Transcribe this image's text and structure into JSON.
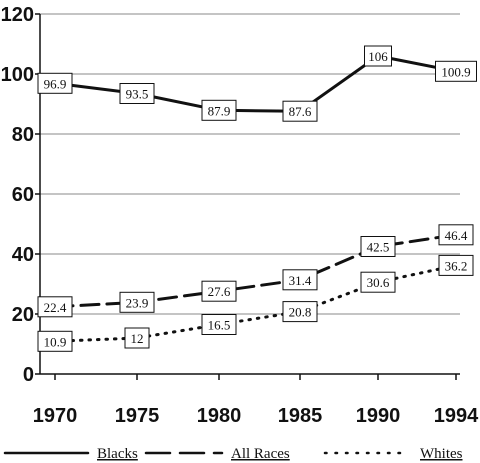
{
  "chart_data": {
    "type": "line",
    "title": "",
    "xlabel": "",
    "ylabel": "",
    "x": [
      1970,
      1975,
      1980,
      1985,
      1990,
      1994
    ],
    "x_tick_labels": [
      "1970",
      "1975",
      "1980",
      "1985",
      "1990",
      "1994"
    ],
    "ylim": [
      0,
      120
    ],
    "y_ticks": [
      0,
      20,
      40,
      60,
      80,
      100,
      120
    ],
    "y_tick_labels": [
      "0",
      "20",
      "40",
      "60",
      "80",
      "100",
      "120"
    ],
    "grid": true,
    "legend_position": "bottom",
    "series": [
      {
        "name": "Blacks",
        "style": "solid",
        "color": "#111111",
        "values": [
          96.9,
          93.5,
          87.9,
          87.6,
          106,
          100.9
        ],
        "labels": [
          "96.9",
          "93.5",
          "87.9",
          "87.6",
          "106",
          "100.9"
        ]
      },
      {
        "name": "All Races",
        "style": "dashed",
        "color": "#111111",
        "values": [
          22.4,
          23.9,
          27.6,
          31.4,
          42.5,
          46.4
        ],
        "labels": [
          "22.4",
          "23.9",
          "27.6",
          "31.4",
          "42.5",
          "46.4"
        ]
      },
      {
        "name": "Whites",
        "style": "dotted",
        "color": "#111111",
        "values": [
          10.9,
          12,
          16.5,
          20.8,
          30.6,
          36.2
        ],
        "labels": [
          "10.9",
          "12",
          "16.5",
          "20.8",
          "30.6",
          "36.2"
        ]
      }
    ]
  }
}
